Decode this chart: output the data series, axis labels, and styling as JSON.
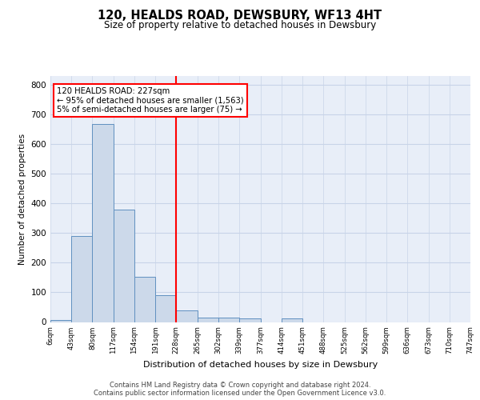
{
  "title": "120, HEALDS ROAD, DEWSBURY, WF13 4HT",
  "subtitle": "Size of property relative to detached houses in Dewsbury",
  "xlabel": "Distribution of detached houses by size in Dewsbury",
  "ylabel": "Number of detached properties",
  "bar_edges": [
    6,
    43,
    80,
    117,
    154,
    191,
    228,
    265,
    302,
    339,
    377,
    414,
    451,
    488,
    525,
    562,
    599,
    636,
    673,
    710,
    747
  ],
  "bar_heights": [
    8,
    290,
    667,
    379,
    152,
    91,
    40,
    15,
    14,
    11,
    0,
    11,
    0,
    0,
    0,
    0,
    0,
    0,
    0,
    0
  ],
  "bar_color": "#ccd9ea",
  "bar_edge_color": "#6090c0",
  "vline_x": 227,
  "vline_color": "red",
  "annotation_text": "120 HEALDS ROAD: 227sqm\n← 95% of detached houses are smaller (1,563)\n5% of semi-detached houses are larger (75) →",
  "annotation_box_color": "white",
  "annotation_box_edge_color": "red",
  "ylim": [
    0,
    830
  ],
  "yticks": [
    0,
    100,
    200,
    300,
    400,
    500,
    600,
    700,
    800
  ],
  "grid_color": "#c8d4e8",
  "background_color": "#e8eef8",
  "footer_line1": "Contains HM Land Registry data © Crown copyright and database right 2024.",
  "footer_line2": "Contains public sector information licensed under the Open Government Licence v3.0.",
  "tick_labels": [
    "6sqm",
    "43sqm",
    "80sqm",
    "117sqm",
    "154sqm",
    "191sqm",
    "228sqm",
    "265sqm",
    "302sqm",
    "339sqm",
    "377sqm",
    "414sqm",
    "451sqm",
    "488sqm",
    "525sqm",
    "562sqm",
    "599sqm",
    "636sqm",
    "673sqm",
    "710sqm",
    "747sqm"
  ]
}
